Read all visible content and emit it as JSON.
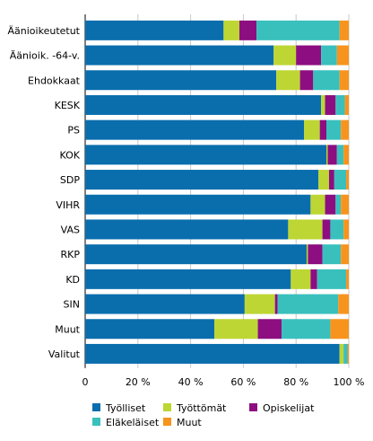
{
  "chart_data": {
    "type": "bar",
    "orientation": "horizontal",
    "stacked": true,
    "categories": [
      "Äänioikeutetut",
      "Äänioik. -64-v.",
      "Ehdokkaat",
      "KESK",
      "PS",
      "KOK",
      "SDP",
      "VIHR",
      "VAS",
      "RKP",
      "KD",
      "SIN",
      "Muut",
      "Valitut"
    ],
    "series": [
      {
        "name": "Työlliset",
        "color": "#0a6ead",
        "values": [
          52.5,
          71.5,
          72.5,
          89.5,
          83,
          91.5,
          88.5,
          85.5,
          77,
          84,
          78,
          60.5,
          49,
          96.5
        ]
      },
      {
        "name": "Työttömät",
        "color": "#bdd634",
        "values": [
          6,
          8.5,
          9,
          1.5,
          6,
          0.5,
          4,
          5.5,
          13,
          0.5,
          7.5,
          11.5,
          16.5,
          1.5
        ]
      },
      {
        "name": "Opiskelijat",
        "color": "#8d0e80",
        "values": [
          6.5,
          9.5,
          5,
          4,
          2.5,
          3.5,
          2,
          4,
          3,
          5.5,
          2.5,
          1,
          9,
          0
        ]
      },
      {
        "name": "Eläkeläiset",
        "color": "#39c0bd",
        "values": [
          31.5,
          6,
          10,
          3.5,
          5.5,
          2.5,
          4.5,
          2,
          5,
          7,
          11,
          23,
          18.5,
          1.5
        ]
      },
      {
        "name": "Muut",
        "color": "#f7941d",
        "values": [
          3.5,
          4.5,
          3.5,
          1.5,
          3,
          2,
          1,
          3,
          2,
          3,
          1,
          4,
          7,
          0.5
        ]
      }
    ],
    "xlim": [
      0,
      100
    ],
    "xticks": [
      "0",
      "20 %",
      "40 %",
      "60 %",
      "80 %",
      "100 %"
    ],
    "legend_position": "bottom",
    "grid": true
  }
}
